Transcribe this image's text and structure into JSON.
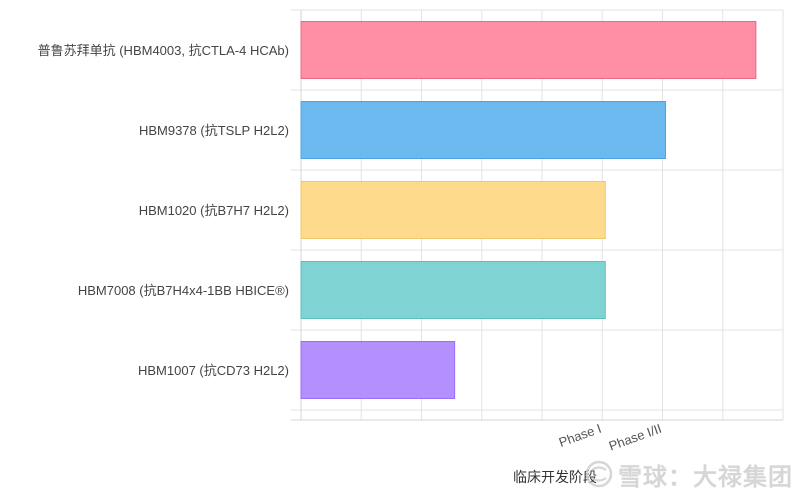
{
  "chart_data": {
    "type": "bar",
    "orientation": "horizontal",
    "categories": [
      "普鲁苏拜单抗 (HBM4003, 抗CTLA-4 HCAb)",
      "HBM9378 (抗TSLP H2L2)",
      "HBM1020 (抗B7H7 H2L2)",
      "HBM7008 (抗B7H4x4-1BB HBICE®)",
      "HBM1007 (抗CD73 H2L2)"
    ],
    "values": [
      7.55,
      6.05,
      5.05,
      5.05,
      2.55
    ],
    "colors": [
      "#ff8fa5",
      "#6cb9ef",
      "#fedb8c",
      "#7fd3d3",
      "#b490fe"
    ],
    "border_colors": [
      "#e86a85",
      "#4fa3e0",
      "#f0c86a",
      "#5cc0c0",
      "#9a6df5"
    ],
    "xlim": [
      0,
      8
    ],
    "x_ticks": [
      0,
      1,
      2,
      3,
      4,
      5,
      6,
      7,
      8
    ],
    "x_tick_labels": [
      "",
      "",
      "",
      "",
      "",
      "Phase I",
      "Phase I/II",
      "",
      ""
    ],
    "xlabel": "临床开发阶段",
    "ylabel": "",
    "grid": true,
    "legend": "none"
  },
  "watermark": {
    "text": "雪球：大禄集团",
    "icon": "snowball-logo-icon"
  }
}
